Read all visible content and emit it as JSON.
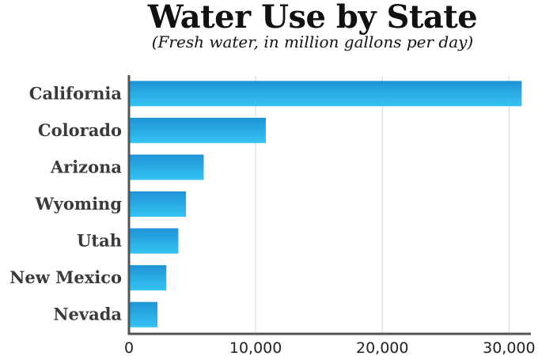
{
  "chart_data": {
    "type": "bar",
    "orientation": "horizontal",
    "title": "Water Use by State",
    "subtitle": "(Fresh water, in million gallons per day)",
    "categories": [
      "California",
      "Colorado",
      "Arizona",
      "Wyoming",
      "Utah",
      "New Mexico",
      "Nevada"
    ],
    "values": [
      31000,
      10800,
      5900,
      4500,
      3900,
      2950,
      2250
    ],
    "xlim": [
      0,
      31600
    ],
    "xticks": [
      0,
      10000,
      20000,
      30000
    ],
    "xtick_labels": [
      "0",
      "10,000",
      "20,000",
      "30,000"
    ],
    "grid": "vertical",
    "colors": {
      "bar_top": "#1f93d6",
      "bar_bottom": "#35c3f2",
      "axis": "#555555",
      "grid": "#d9d9d9"
    }
  }
}
